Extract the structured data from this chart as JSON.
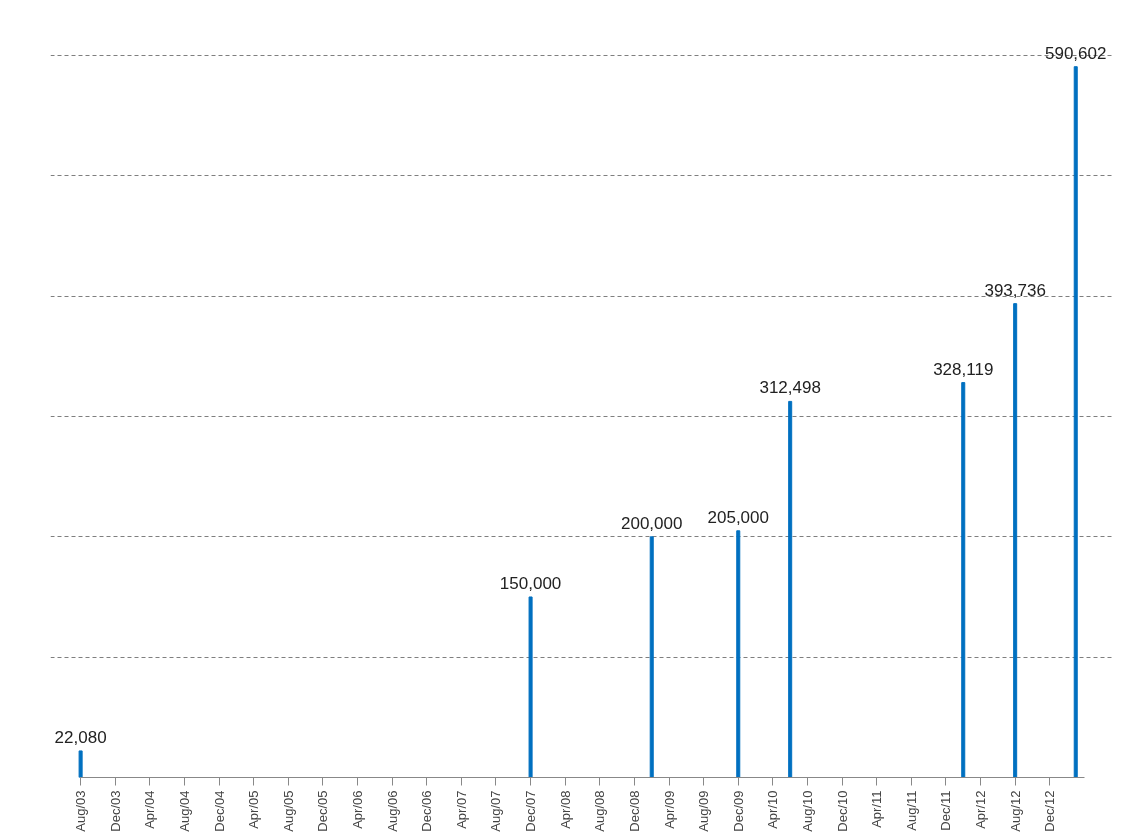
{
  "chart_data": {
    "type": "bar",
    "x": [
      "2003-08",
      "2007-12",
      "2009-02",
      "2009-12",
      "2010-06",
      "2012-02",
      "2012-08",
      "2013-03"
    ],
    "values": [
      22080,
      150000,
      200000,
      205000,
      312498,
      328119,
      393736,
      590602
    ],
    "color": "#0070c0",
    "value_labels": [
      "22,080",
      "150,000",
      "200,000",
      "205,000",
      "312,498",
      "328,119",
      "393,736",
      "590,602"
    ],
    "xlim": [
      "2003-08",
      "2013-04"
    ],
    "xticks": [
      {
        "value": "2003-08",
        "label": "Aug/03"
      },
      {
        "value": "2003-12",
        "label": "Dec/03"
      },
      {
        "value": "2004-04",
        "label": "Apr/04"
      },
      {
        "value": "2004-08",
        "label": "Aug/04"
      },
      {
        "value": "2004-12",
        "label": "Dec/04"
      },
      {
        "value": "2005-04",
        "label": "Apr/05"
      },
      {
        "value": "2005-08",
        "label": "Aug/05"
      },
      {
        "value": "2005-12",
        "label": "Dec/05"
      },
      {
        "value": "2006-04",
        "label": "Apr/06"
      },
      {
        "value": "2006-08",
        "label": "Aug/06"
      },
      {
        "value": "2006-12",
        "label": "Dec/06"
      },
      {
        "value": "2007-04",
        "label": "Apr/07"
      },
      {
        "value": "2007-08",
        "label": "Aug/07"
      },
      {
        "value": "2007-12",
        "label": "Dec/07"
      },
      {
        "value": "2008-04",
        "label": "Apr/08"
      },
      {
        "value": "2008-08",
        "label": "Aug/08"
      },
      {
        "value": "2008-12",
        "label": "Dec/08"
      },
      {
        "value": "2009-04",
        "label": "Apr/09"
      },
      {
        "value": "2009-08",
        "label": "Aug/09"
      },
      {
        "value": "2009-12",
        "label": "Dec/09"
      },
      {
        "value": "2010-04",
        "label": "Apr/10"
      },
      {
        "value": "2010-08",
        "label": "Aug/10"
      },
      {
        "value": "2010-12",
        "label": "Dec/10"
      },
      {
        "value": "2011-04",
        "label": "Apr/11"
      },
      {
        "value": "2011-08",
        "label": "Aug/11"
      },
      {
        "value": "2011-12",
        "label": "Dec/11"
      },
      {
        "value": "2012-04",
        "label": "Apr/12"
      },
      {
        "value": "2012-08",
        "label": "Aug/12"
      },
      {
        "value": "2012-12",
        "label": "Dec/12"
      }
    ],
    "grid": "y",
    "tick_labels": "x"
  }
}
